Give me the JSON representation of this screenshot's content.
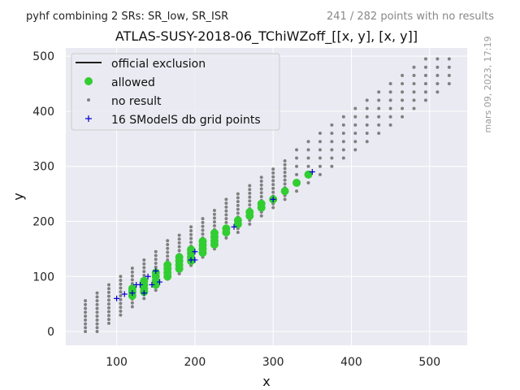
{
  "header": {
    "left_note": "pyhf combining 2 SRs: SR_low, SR_ISR",
    "right_note": "241 / 282 points with no results",
    "side_note": "mars 09, 2023, 17:19"
  },
  "colors": {
    "plot_bg": "#eaeaf2",
    "allowed": "#32cd32",
    "no_result": "#808080",
    "grid_point": "#0000cd",
    "exclusion": "#000000"
  },
  "chart_data": {
    "type": "scatter",
    "title": "ATLAS-SUSY-2018-06_TChiWZoff_[[x, y], [x, y]]",
    "xlabel": "x",
    "ylabel": "y",
    "xlim": [
      35,
      548
    ],
    "ylim": [
      -25,
      515
    ],
    "x_ticks": [
      "100",
      "200",
      "300",
      "400",
      "500"
    ],
    "y_ticks": [
      "0",
      "100",
      "200",
      "300",
      "400",
      "500"
    ],
    "grid": true,
    "legend_position": "top-left",
    "legend": [
      {
        "key": "official",
        "label": "official exclusion",
        "marker": "line"
      },
      {
        "key": "allowed",
        "label": "allowed",
        "marker": "big-dot"
      },
      {
        "key": "no_result",
        "label": "no result",
        "marker": "small-dot"
      },
      {
        "key": "grid",
        "label": "16 SModelS db grid points",
        "marker": "plus"
      }
    ],
    "no_result_columns": [
      {
        "x": 60,
        "y_min": 0,
        "y_max": 60,
        "step": 7
      },
      {
        "x": 75,
        "y_min": 0,
        "y_max": 75,
        "step": 7
      },
      {
        "x": 90,
        "y_min": 15,
        "y_max": 90,
        "step": 7
      },
      {
        "x": 105,
        "y_min": 30,
        "y_max": 105,
        "step": 7
      },
      {
        "x": 120,
        "y_min": 45,
        "y_max": 120,
        "step": 7
      },
      {
        "x": 135,
        "y_min": 60,
        "y_max": 135,
        "step": 7
      },
      {
        "x": 150,
        "y_min": 75,
        "y_max": 150,
        "step": 7
      },
      {
        "x": 165,
        "y_min": 95,
        "y_max": 165,
        "step": 7
      },
      {
        "x": 180,
        "y_min": 105,
        "y_max": 180,
        "step": 7
      },
      {
        "x": 195,
        "y_min": 120,
        "y_max": 195,
        "step": 7
      },
      {
        "x": 210,
        "y_min": 135,
        "y_max": 210,
        "step": 7
      },
      {
        "x": 225,
        "y_min": 150,
        "y_max": 225,
        "step": 7
      },
      {
        "x": 240,
        "y_min": 170,
        "y_max": 240,
        "step": 7
      },
      {
        "x": 255,
        "y_min": 180,
        "y_max": 255,
        "step": 7
      },
      {
        "x": 270,
        "y_min": 195,
        "y_max": 270,
        "step": 7
      },
      {
        "x": 285,
        "y_min": 210,
        "y_max": 285,
        "step": 7
      },
      {
        "x": 300,
        "y_min": 225,
        "y_max": 300,
        "step": 7
      },
      {
        "x": 315,
        "y_min": 240,
        "y_max": 315,
        "step": 7
      },
      {
        "x": 330,
        "y_min": 255,
        "y_max": 330,
        "step": 15
      },
      {
        "x": 345,
        "y_min": 270,
        "y_max": 345,
        "step": 15
      },
      {
        "x": 360,
        "y_min": 285,
        "y_max": 360,
        "step": 15
      },
      {
        "x": 375,
        "y_min": 300,
        "y_max": 375,
        "step": 15
      },
      {
        "x": 390,
        "y_min": 315,
        "y_max": 390,
        "step": 15
      },
      {
        "x": 405,
        "y_min": 330,
        "y_max": 405,
        "step": 15
      },
      {
        "x": 420,
        "y_min": 345,
        "y_max": 420,
        "step": 15
      },
      {
        "x": 435,
        "y_min": 360,
        "y_max": 435,
        "step": 15
      },
      {
        "x": 450,
        "y_min": 375,
        "y_max": 450,
        "step": 15
      },
      {
        "x": 465,
        "y_min": 390,
        "y_max": 465,
        "step": 15
      },
      {
        "x": 480,
        "y_min": 405,
        "y_max": 480,
        "step": 15
      },
      {
        "x": 495,
        "y_min": 420,
        "y_max": 495,
        "step": 15
      },
      {
        "x": 510,
        "y_min": 435,
        "y_max": 495,
        "step": 15
      },
      {
        "x": 525,
        "y_min": 450,
        "y_max": 495,
        "step": 15
      }
    ],
    "allowed_points": [
      [
        120,
        65
      ],
      [
        120,
        72
      ],
      [
        120,
        78
      ],
      [
        135,
        72
      ],
      [
        135,
        78
      ],
      [
        135,
        85
      ],
      [
        135,
        92
      ],
      [
        150,
        85
      ],
      [
        150,
        92
      ],
      [
        150,
        100
      ],
      [
        150,
        107
      ],
      [
        165,
        100
      ],
      [
        165,
        107
      ],
      [
        165,
        114
      ],
      [
        165,
        121
      ],
      [
        180,
        114
      ],
      [
        180,
        121
      ],
      [
        180,
        128
      ],
      [
        180,
        135
      ],
      [
        195,
        128
      ],
      [
        195,
        135
      ],
      [
        195,
        142
      ],
      [
        195,
        149
      ],
      [
        210,
        143
      ],
      [
        210,
        150
      ],
      [
        210,
        157
      ],
      [
        210,
        164
      ],
      [
        225,
        158
      ],
      [
        225,
        165
      ],
      [
        225,
        172
      ],
      [
        225,
        179
      ],
      [
        240,
        180
      ],
      [
        240,
        187
      ],
      [
        255,
        195
      ],
      [
        255,
        202
      ],
      [
        270,
        210
      ],
      [
        270,
        217
      ],
      [
        285,
        225
      ],
      [
        285,
        232
      ],
      [
        300,
        240
      ],
      [
        315,
        255
      ],
      [
        330,
        270
      ],
      [
        345,
        285
      ]
    ],
    "grid_points": [
      [
        100,
        60
      ],
      [
        110,
        68
      ],
      [
        120,
        70
      ],
      [
        125,
        85
      ],
      [
        135,
        70
      ],
      [
        140,
        100
      ],
      [
        145,
        85
      ],
      [
        150,
        110
      ],
      [
        155,
        90
      ],
      [
        195,
        130
      ],
      [
        200,
        130
      ],
      [
        200,
        145
      ],
      [
        250,
        190
      ],
      [
        300,
        240
      ],
      [
        350,
        290
      ],
      [
        130,
        85
      ]
    ]
  }
}
